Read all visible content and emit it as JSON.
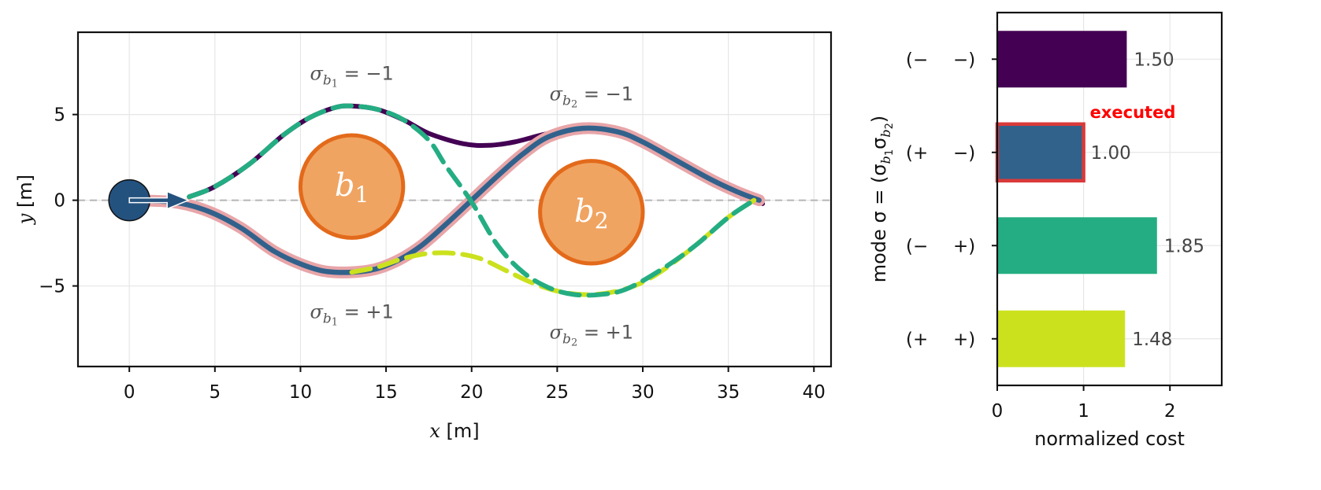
{
  "chart_data": [
    {
      "type": "line",
      "xlabel": "x [m]",
      "ylabel": "y [m]",
      "xlim": [
        -3,
        41
      ],
      "ylim": [
        -9.7,
        9.8
      ],
      "xticks": [
        0,
        5,
        10,
        15,
        20,
        25,
        30,
        35,
        40
      ],
      "yticks": [
        -5,
        0,
        5
      ],
      "xtick_labels": [
        "0",
        "5",
        "10",
        "15",
        "20",
        "25",
        "30",
        "35",
        "40"
      ],
      "ytick_labels": [
        "−5",
        "0",
        "5"
      ],
      "grid": true,
      "reference_line_y": 0,
      "start": {
        "x": 0,
        "y": 0,
        "heading_deg": 0
      },
      "obstacles": [
        {
          "label": "b",
          "subscript": "1",
          "x": 13,
          "y": 0.8,
          "r": 3.0
        },
        {
          "label": "b",
          "subscript": "2",
          "x": 27,
          "y": -0.7,
          "r": 3.0
        }
      ],
      "annotations": [
        {
          "base": "σ",
          "sub_base": "b",
          "sub_index": "1",
          "value": "= −1",
          "x": 13,
          "y": 7.4
        },
        {
          "base": "σ",
          "sub_base": "b",
          "sub_index": "2",
          "value": "= −1",
          "x": 27,
          "y": 6.2
        },
        {
          "base": "σ",
          "sub_base": "b",
          "sub_index": "1",
          "value": "= +1",
          "x": 13,
          "y": -6.5
        },
        {
          "base": "σ",
          "sub_base": "b",
          "sub_index": "2",
          "value": "= +1",
          "x": 27,
          "y": -7.7
        }
      ],
      "series": [
        {
          "mode": "(− −)",
          "color": "#440154",
          "dash": "solid",
          "executed": false,
          "x": [
            3.5,
            5,
            7,
            9,
            10.5,
            12,
            13,
            14.5,
            16,
            17.5,
            19.5,
            21,
            22.5,
            24.5,
            26.5,
            28.5,
            30,
            32,
            34,
            35.5,
            37
          ],
          "y": [
            0.2,
            0.8,
            2.1,
            3.8,
            4.8,
            5.4,
            5.5,
            5.3,
            4.7,
            3.9,
            3.3,
            3.2,
            3.4,
            3.9,
            4.2,
            4.0,
            3.4,
            2.3,
            1.2,
            0.5,
            -0.2
          ]
        },
        {
          "mode": "(+ −)",
          "color": "#31628c",
          "dash": "solid",
          "executed": true,
          "halo": "#e8a5a8",
          "x": [
            0,
            2.5,
            4.5,
            6.5,
            8.5,
            10.5,
            12,
            14,
            15.5,
            17,
            18.5,
            20,
            21.5,
            23,
            24.5,
            26.5,
            28.5,
            30,
            32,
            34,
            35.5,
            36.8
          ],
          "y": [
            0,
            -0.1,
            -0.6,
            -1.6,
            -3.0,
            -3.9,
            -4.2,
            -4.1,
            -3.6,
            -2.7,
            -1.4,
            0,
            1.4,
            2.7,
            3.7,
            4.2,
            4.0,
            3.4,
            2.3,
            1.2,
            0.5,
            0
          ]
        },
        {
          "mode": "(− +)",
          "color": "#24ad82",
          "dash": "dashed",
          "executed": false,
          "x": [
            3.5,
            5,
            7,
            9,
            10.5,
            12,
            13,
            14.5,
            16,
            17.5,
            18.5,
            20,
            21.5,
            23,
            24.5,
            26,
            27.5,
            29,
            31,
            33,
            35,
            36.5
          ],
          "y": [
            0.2,
            0.8,
            2.1,
            3.8,
            4.8,
            5.4,
            5.5,
            5.3,
            4.7,
            3.5,
            2.0,
            -0.1,
            -2.6,
            -4.2,
            -5.1,
            -5.5,
            -5.5,
            -5.2,
            -4.1,
            -2.7,
            -1.0,
            0
          ]
        },
        {
          "mode": "(+ +)",
          "color": "#cbe11e",
          "dash": "dashed",
          "executed": false,
          "x": [
            13,
            14.5,
            16,
            17.5,
            19,
            20.5,
            22,
            23.5,
            25,
            26.5,
            28,
            29.5,
            31,
            33,
            35,
            36.5
          ],
          "y": [
            -4.2,
            -3.9,
            -3.4,
            -3.1,
            -3.1,
            -3.4,
            -4.1,
            -4.8,
            -5.3,
            -5.5,
            -5.4,
            -5.0,
            -4.2,
            -2.7,
            -1.0,
            0
          ]
        }
      ]
    },
    {
      "type": "bar",
      "orientation": "horizontal",
      "xlabel": "normalized cost",
      "ylabel": "mode  σ = (σ",
      "ylabel_parts": {
        "prefix": "mode  σ = (σ",
        "sub1_base": "b",
        "sub1_index": "1",
        "mid": "σ",
        "sub2_base": "b",
        "sub2_index": "2",
        "suffix": ")"
      },
      "xlim": [
        0,
        2.6
      ],
      "xticks": [
        0,
        1,
        2
      ],
      "xtick_labels": [
        "0",
        "1",
        "2"
      ],
      "categories": [
        {
          "first": "(−",
          "second": "−)"
        },
        {
          "first": "(+",
          "second": "−)"
        },
        {
          "first": "(−",
          "second": "+)"
        },
        {
          "first": "(+",
          "second": "+)"
        }
      ],
      "values": [
        1.5,
        1.0,
        1.85,
        1.48
      ],
      "value_labels": [
        "1.50",
        "1.00",
        "1.85",
        "1.48"
      ],
      "colors": [
        "#440154",
        "#31628c",
        "#24ad82",
        "#cbe11e"
      ],
      "executed_index": 1,
      "executed_label": "executed",
      "executed_color": "#ff0000",
      "executed_border": "#d93a3a"
    }
  ]
}
